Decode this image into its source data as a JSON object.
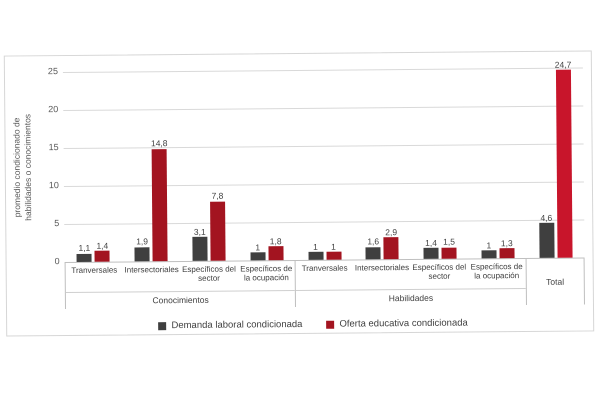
{
  "chart_data": {
    "type": "bar",
    "title": "",
    "y_axis_title_lines": [
      "promedio condicionado de",
      "habilidades o conocimientos"
    ],
    "y_ticks": [
      0,
      5,
      10,
      15,
      20,
      25
    ],
    "y_max": 25,
    "ylim": [
      0,
      25
    ],
    "grid": true,
    "legend_position": "bottom",
    "decimal_separator": ",",
    "groups": [
      {
        "label": "Conocimientos",
        "categories": [
          "Tranversales",
          "Intersectoriales",
          "Específicos del sector",
          "Específicos de la ocupación"
        ]
      },
      {
        "label": "Habilidades",
        "categories": [
          "Tranversales",
          "Intersectoriales",
          "Específicos del sector",
          "Específicos de la ocupación"
        ]
      },
      {
        "label": "Total",
        "categories": [
          ""
        ]
      }
    ],
    "series": [
      {
        "name": "Demanda laboral condicionada",
        "color": "#3f3f3f",
        "values": [
          [
            1.1,
            1.9,
            3.1,
            1
          ],
          [
            1,
            1.6,
            1.4,
            1
          ],
          [
            4.6
          ]
        ]
      },
      {
        "name": "Oferta educativa condicionada",
        "color": "#a31420",
        "values": [
          [
            1.4,
            14.8,
            7.8,
            1.8
          ],
          [
            1,
            2.9,
            1.5,
            1.3
          ],
          [
            24.7
          ]
        ]
      }
    ],
    "total_oferta_color": "#c8152b",
    "colors": {
      "gridline": "#d9d9d9",
      "axis_line": "#bfbfbf",
      "tick_text": "#595959",
      "label_text": "#404040",
      "frame_border": "#d6d6d6"
    }
  }
}
